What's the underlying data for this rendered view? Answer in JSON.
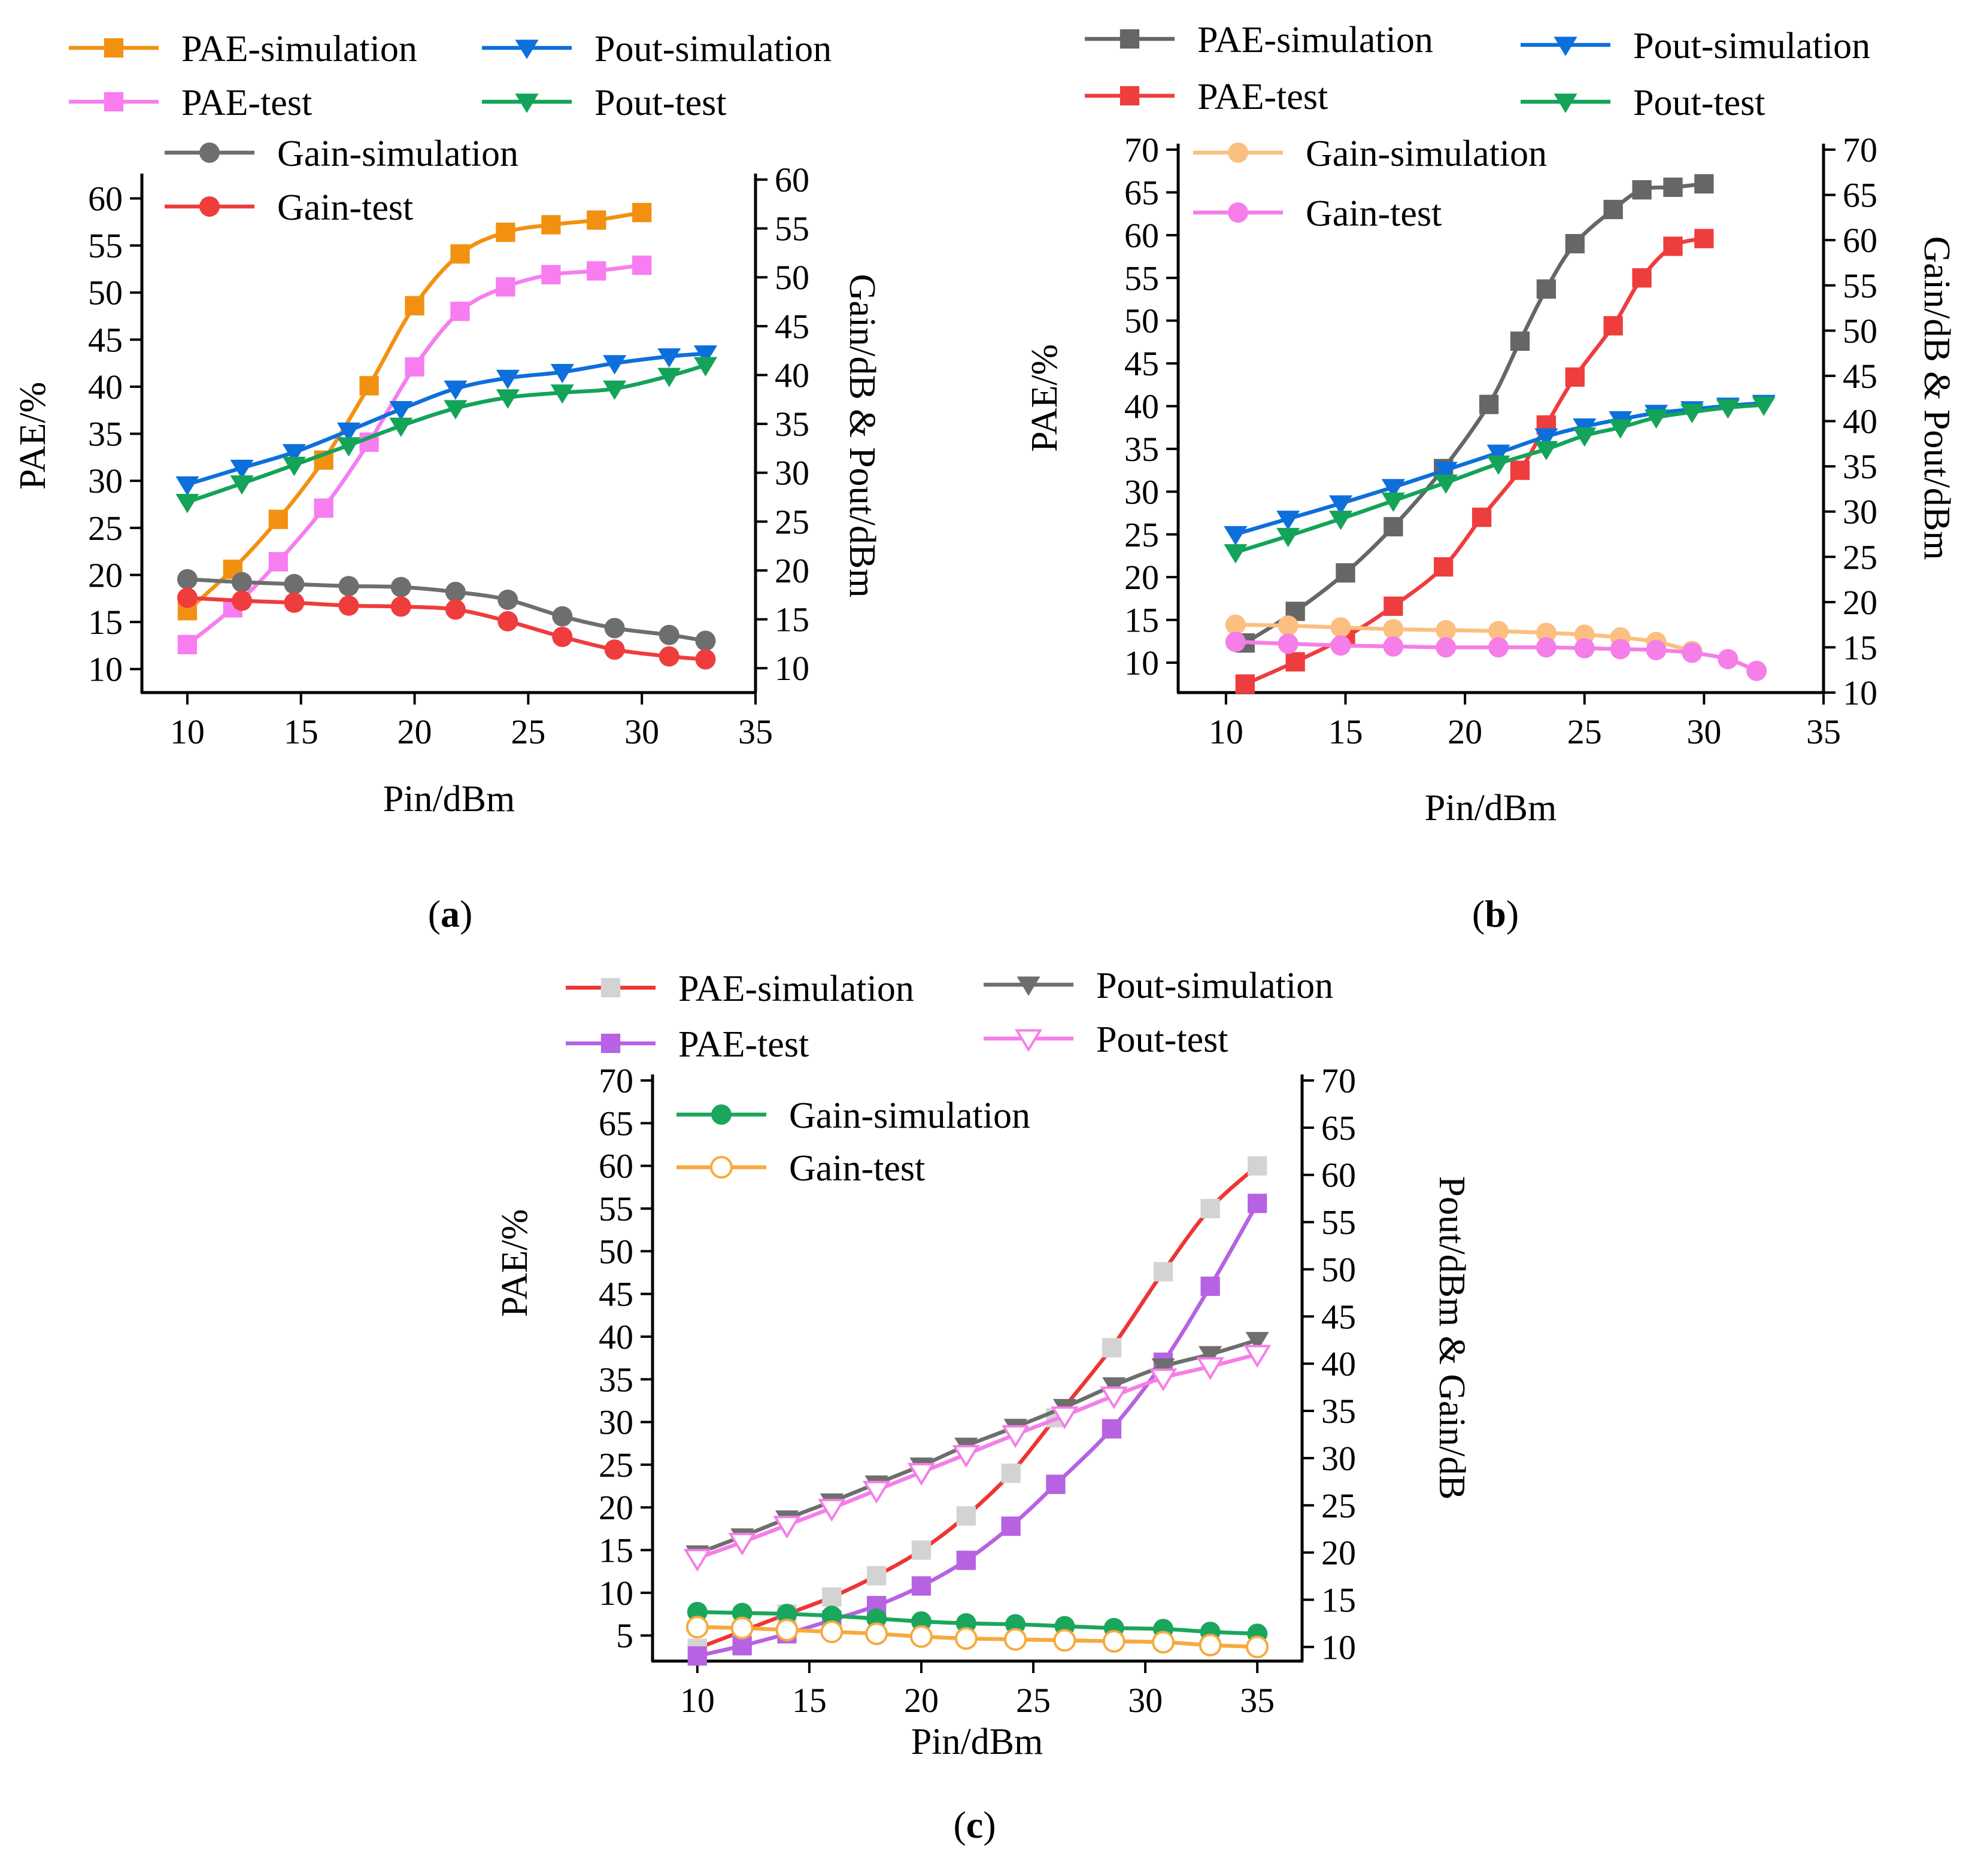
{
  "figure": {
    "panels": [
      "a",
      "b",
      "c"
    ]
  },
  "chart_data": [
    {
      "id": "a",
      "type": "line",
      "caption_label": "a",
      "caption_open": "(",
      "caption_close": ")",
      "xlabel": "Pin/dBm",
      "ylabel_left": "PAE/%",
      "ylabel_right": "Gain/dB & Pout/dBm",
      "xlim": [
        8,
        35
      ],
      "xticks": [
        10,
        15,
        20,
        25,
        30,
        35
      ],
      "ylim_left": [
        7.5,
        62
      ],
      "yticks_left": [
        10,
        15,
        20,
        25,
        30,
        35,
        40,
        45,
        50,
        55,
        60
      ],
      "ylim_right": [
        7.5,
        60
      ],
      "yticks_right": [
        10,
        15,
        20,
        25,
        30,
        35,
        40,
        45,
        50,
        55,
        60
      ],
      "series": [
        {
          "name": "PAE-simulation",
          "axis": "left",
          "color": "#f29111",
          "marker": "square",
          "x": [
            10,
            12,
            14,
            16,
            18,
            20,
            22,
            24,
            26,
            28,
            30
          ],
          "y": [
            16.2,
            20.6,
            25.9,
            32.2,
            40.1,
            48.6,
            54.1,
            56.4,
            57.2,
            57.7,
            58.5
          ]
        },
        {
          "name": "PAE-test",
          "axis": "left",
          "color": "#f77df0",
          "marker": "square",
          "x": [
            10,
            12,
            14,
            16,
            18,
            20,
            22,
            24,
            26,
            28,
            30
          ],
          "y": [
            12.6,
            16.5,
            21.4,
            27.1,
            34.1,
            42.1,
            48.0,
            50.6,
            51.9,
            52.3,
            52.9
          ]
        },
        {
          "name": "Pout-simulation",
          "axis": "right",
          "color": "#0d6fdb",
          "marker": "triangle-down",
          "x": [
            10,
            12.4,
            14.7,
            17.1,
            19.4,
            21.8,
            24.1,
            26.5,
            28.8,
            31.2,
            32.8
          ],
          "y": [
            28.8,
            30.5,
            32.1,
            34.3,
            36.5,
            38.6,
            39.7,
            40.3,
            41.2,
            41.9,
            42.2
          ]
        },
        {
          "name": "Pout-test",
          "axis": "right",
          "color": "#13a359",
          "marker": "triangle-down",
          "x": [
            10,
            12.4,
            14.7,
            17.1,
            19.4,
            21.8,
            24.1,
            26.5,
            28.8,
            31.2,
            32.8
          ],
          "y": [
            27.0,
            28.9,
            30.8,
            32.8,
            34.8,
            36.6,
            37.7,
            38.2,
            38.6,
            39.9,
            41.0
          ]
        },
        {
          "name": "Gain-simulation",
          "axis": "right",
          "color": "#6e6e6e",
          "marker": "circle",
          "x": [
            10,
            12.4,
            14.7,
            17.1,
            19.4,
            21.8,
            24.1,
            26.5,
            28.8,
            31.2,
            32.8
          ],
          "y": [
            19.1,
            18.8,
            18.6,
            18.4,
            18.3,
            17.8,
            17.0,
            15.3,
            14.1,
            13.4,
            12.8
          ]
        },
        {
          "name": "Gain-test",
          "axis": "right",
          "color": "#ef3c3c",
          "marker": "circle",
          "x": [
            10,
            12.4,
            14.7,
            17.1,
            19.4,
            21.8,
            24.1,
            26.5,
            28.8,
            31.2,
            32.8
          ],
          "y": [
            17.2,
            16.9,
            16.7,
            16.4,
            16.3,
            16.0,
            14.8,
            13.2,
            11.9,
            11.2,
            10.9
          ]
        }
      ]
    },
    {
      "id": "b",
      "type": "line",
      "caption_label": "b",
      "caption_open": "(",
      "caption_close": ")",
      "xlabel": "Pin/dBm",
      "ylabel_left": "PAE/%",
      "ylabel_right": "Gain/dB & Pout/dBm",
      "xlim": [
        8,
        35
      ],
      "xticks": [
        10,
        15,
        20,
        25,
        30,
        35
      ],
      "ylim_left": [
        6.5,
        70
      ],
      "yticks_left": [
        10,
        15,
        20,
        25,
        30,
        35,
        40,
        45,
        50,
        55,
        60,
        65,
        70
      ],
      "ylim_right": [
        10,
        70
      ],
      "yticks_right": [
        10,
        15,
        20,
        25,
        30,
        35,
        40,
        45,
        50,
        55,
        60,
        65,
        70
      ],
      "series": [
        {
          "name": "PAE-simulation",
          "axis": "left",
          "color": "#666666",
          "marker": "square",
          "x": [
            10.8,
            12.9,
            15,
            17,
            19.1,
            21,
            22.3,
            23.4,
            24.6,
            26.2,
            27.4,
            28.7,
            30
          ],
          "y": [
            12.3,
            16.0,
            20.5,
            25.9,
            32.7,
            40.2,
            47.6,
            53.7,
            59.0,
            63.0,
            65.3,
            65.6,
            66.0
          ]
        },
        {
          "name": "PAE-test",
          "axis": "left",
          "color": "#ee3d3d",
          "marker": "square",
          "x": [
            10.8,
            12.9,
            15,
            17,
            19.1,
            20.7,
            22.3,
            23.4,
            24.6,
            26.2,
            27.4,
            28.7,
            30
          ],
          "y": [
            7.5,
            10.1,
            13.0,
            16.6,
            21.2,
            27.0,
            32.5,
            37.8,
            43.4,
            49.4,
            55.0,
            58.7,
            59.6
          ]
        },
        {
          "name": "Pout-simulation",
          "axis": "right",
          "color": "#0d6fdb",
          "marker": "triangle-down",
          "x": [
            10.4,
            12.6,
            14.8,
            17,
            19.2,
            21.4,
            23.4,
            25,
            26.5,
            28,
            29.5,
            31,
            32.5
          ],
          "y": [
            27.5,
            29.2,
            30.9,
            32.7,
            34.6,
            36.5,
            38.3,
            39.4,
            40.2,
            40.9,
            41.3,
            41.7,
            42.0
          ]
        },
        {
          "name": "Pout-test",
          "axis": "right",
          "color": "#13a359",
          "marker": "triangle-down",
          "x": [
            10.4,
            12.6,
            14.8,
            17,
            19.2,
            21.4,
            23.4,
            25,
            26.5,
            28,
            29.5,
            31,
            32.5
          ],
          "y": [
            25.5,
            27.3,
            29.2,
            31.2,
            33.2,
            35.3,
            36.9,
            38.4,
            39.3,
            40.4,
            41.0,
            41.5,
            41.8
          ]
        },
        {
          "name": "Gain-simulation",
          "axis": "right",
          "color": "#fbbf80",
          "marker": "circle",
          "x": [
            10.4,
            12.6,
            14.8,
            17,
            19.2,
            21.4,
            23.4,
            25,
            26.5,
            28,
            29.5
          ],
          "y": [
            17.5,
            17.4,
            17.2,
            17.0,
            16.9,
            16.8,
            16.6,
            16.4,
            16.1,
            15.6,
            14.6
          ]
        },
        {
          "name": "Gain-test",
          "axis": "right",
          "color": "#f57ee8",
          "marker": "circle",
          "x": [
            10.4,
            12.6,
            14.8,
            17,
            19.2,
            21.4,
            23.4,
            25,
            26.5,
            28,
            29.5,
            31,
            32.2
          ],
          "y": [
            15.6,
            15.4,
            15.2,
            15.1,
            15.0,
            15.0,
            15.0,
            14.9,
            14.8,
            14.7,
            14.4,
            13.7,
            12.4
          ]
        }
      ]
    },
    {
      "id": "c",
      "type": "line",
      "caption_label": "c",
      "caption_open": "(",
      "caption_close": ")",
      "xlabel": "Pin/dBm",
      "ylabel_left": "PAE/%",
      "ylabel_right": "Pout/dBm & Gain/dB",
      "xlim": [
        8,
        37
      ],
      "xticks": [
        10,
        15,
        20,
        25,
        30,
        35
      ],
      "ylim_left": [
        2,
        70
      ],
      "yticks_left": [
        5,
        10,
        15,
        20,
        25,
        30,
        35,
        40,
        45,
        50,
        55,
        60,
        65,
        70
      ],
      "ylim_right": [
        8.5,
        70
      ],
      "yticks_right": [
        10,
        15,
        20,
        25,
        30,
        35,
        40,
        45,
        50,
        55,
        60,
        65,
        70
      ],
      "series": [
        {
          "name": "PAE-simulation",
          "axis": "left",
          "color": "#ee3535",
          "marker": "square",
          "marker_color": "#d3d3d3",
          "x": [
            10,
            12,
            14,
            16,
            18,
            20,
            22,
            24,
            26,
            28.5,
            30.8,
            32.9,
            35
          ],
          "y": [
            3.5,
            5.5,
            7.5,
            9.5,
            12.0,
            15.0,
            19.0,
            24.0,
            30.5,
            38.7,
            47.6,
            55.0,
            60.0
          ]
        },
        {
          "name": "PAE-test",
          "axis": "left",
          "color": "#b662e2",
          "marker": "square",
          "x": [
            10,
            12,
            14,
            16,
            18,
            20,
            22,
            24,
            26,
            28.5,
            30.8,
            32.9,
            35
          ],
          "y": [
            2.6,
            3.8,
            5.2,
            6.8,
            8.5,
            10.8,
            13.8,
            17.8,
            22.7,
            29.2,
            37.0,
            45.9,
            55.6
          ]
        },
        {
          "name": "Pout-simulation",
          "axis": "right",
          "color": "#6e6e6e",
          "marker": "triangle-down",
          "x": [
            10,
            12,
            14,
            16,
            18,
            20,
            22,
            24.2,
            26.4,
            28.6,
            30.8,
            32.9,
            35
          ],
          "y": [
            19.9,
            21.7,
            23.6,
            25.4,
            27.3,
            29.2,
            31.3,
            33.3,
            35.4,
            37.7,
            39.7,
            41.0,
            42.5
          ]
        },
        {
          "name": "Pout-test",
          "axis": "right",
          "color": "#f57ee8",
          "marker": "triangle-down-open",
          "x": [
            10,
            12,
            14,
            16,
            18,
            20,
            22,
            24.2,
            26.4,
            28.6,
            30.8,
            32.9,
            35
          ],
          "y": [
            19.4,
            21.1,
            22.9,
            24.7,
            26.6,
            28.5,
            30.4,
            32.5,
            34.5,
            36.6,
            38.5,
            39.7,
            41.0
          ]
        },
        {
          "name": "Gain-simulation",
          "axis": "right",
          "color": "#1aa65c",
          "marker": "circle",
          "x": [
            10,
            12,
            14,
            16,
            18,
            20,
            22,
            24.2,
            26.4,
            28.6,
            30.8,
            32.9,
            35
          ],
          "y": [
            13.7,
            13.6,
            13.5,
            13.3,
            13.0,
            12.7,
            12.5,
            12.4,
            12.2,
            12.0,
            11.9,
            11.6,
            11.4
          ]
        },
        {
          "name": "Gain-test",
          "axis": "right",
          "color": "#f6aa3c",
          "marker": "circle-open",
          "x": [
            10,
            12,
            14,
            16,
            18,
            20,
            22,
            24.2,
            26.4,
            28.6,
            30.8,
            32.9,
            35
          ],
          "y": [
            12.1,
            12.0,
            11.8,
            11.6,
            11.4,
            11.1,
            10.9,
            10.8,
            10.7,
            10.6,
            10.5,
            10.2,
            10.0
          ]
        }
      ]
    }
  ]
}
